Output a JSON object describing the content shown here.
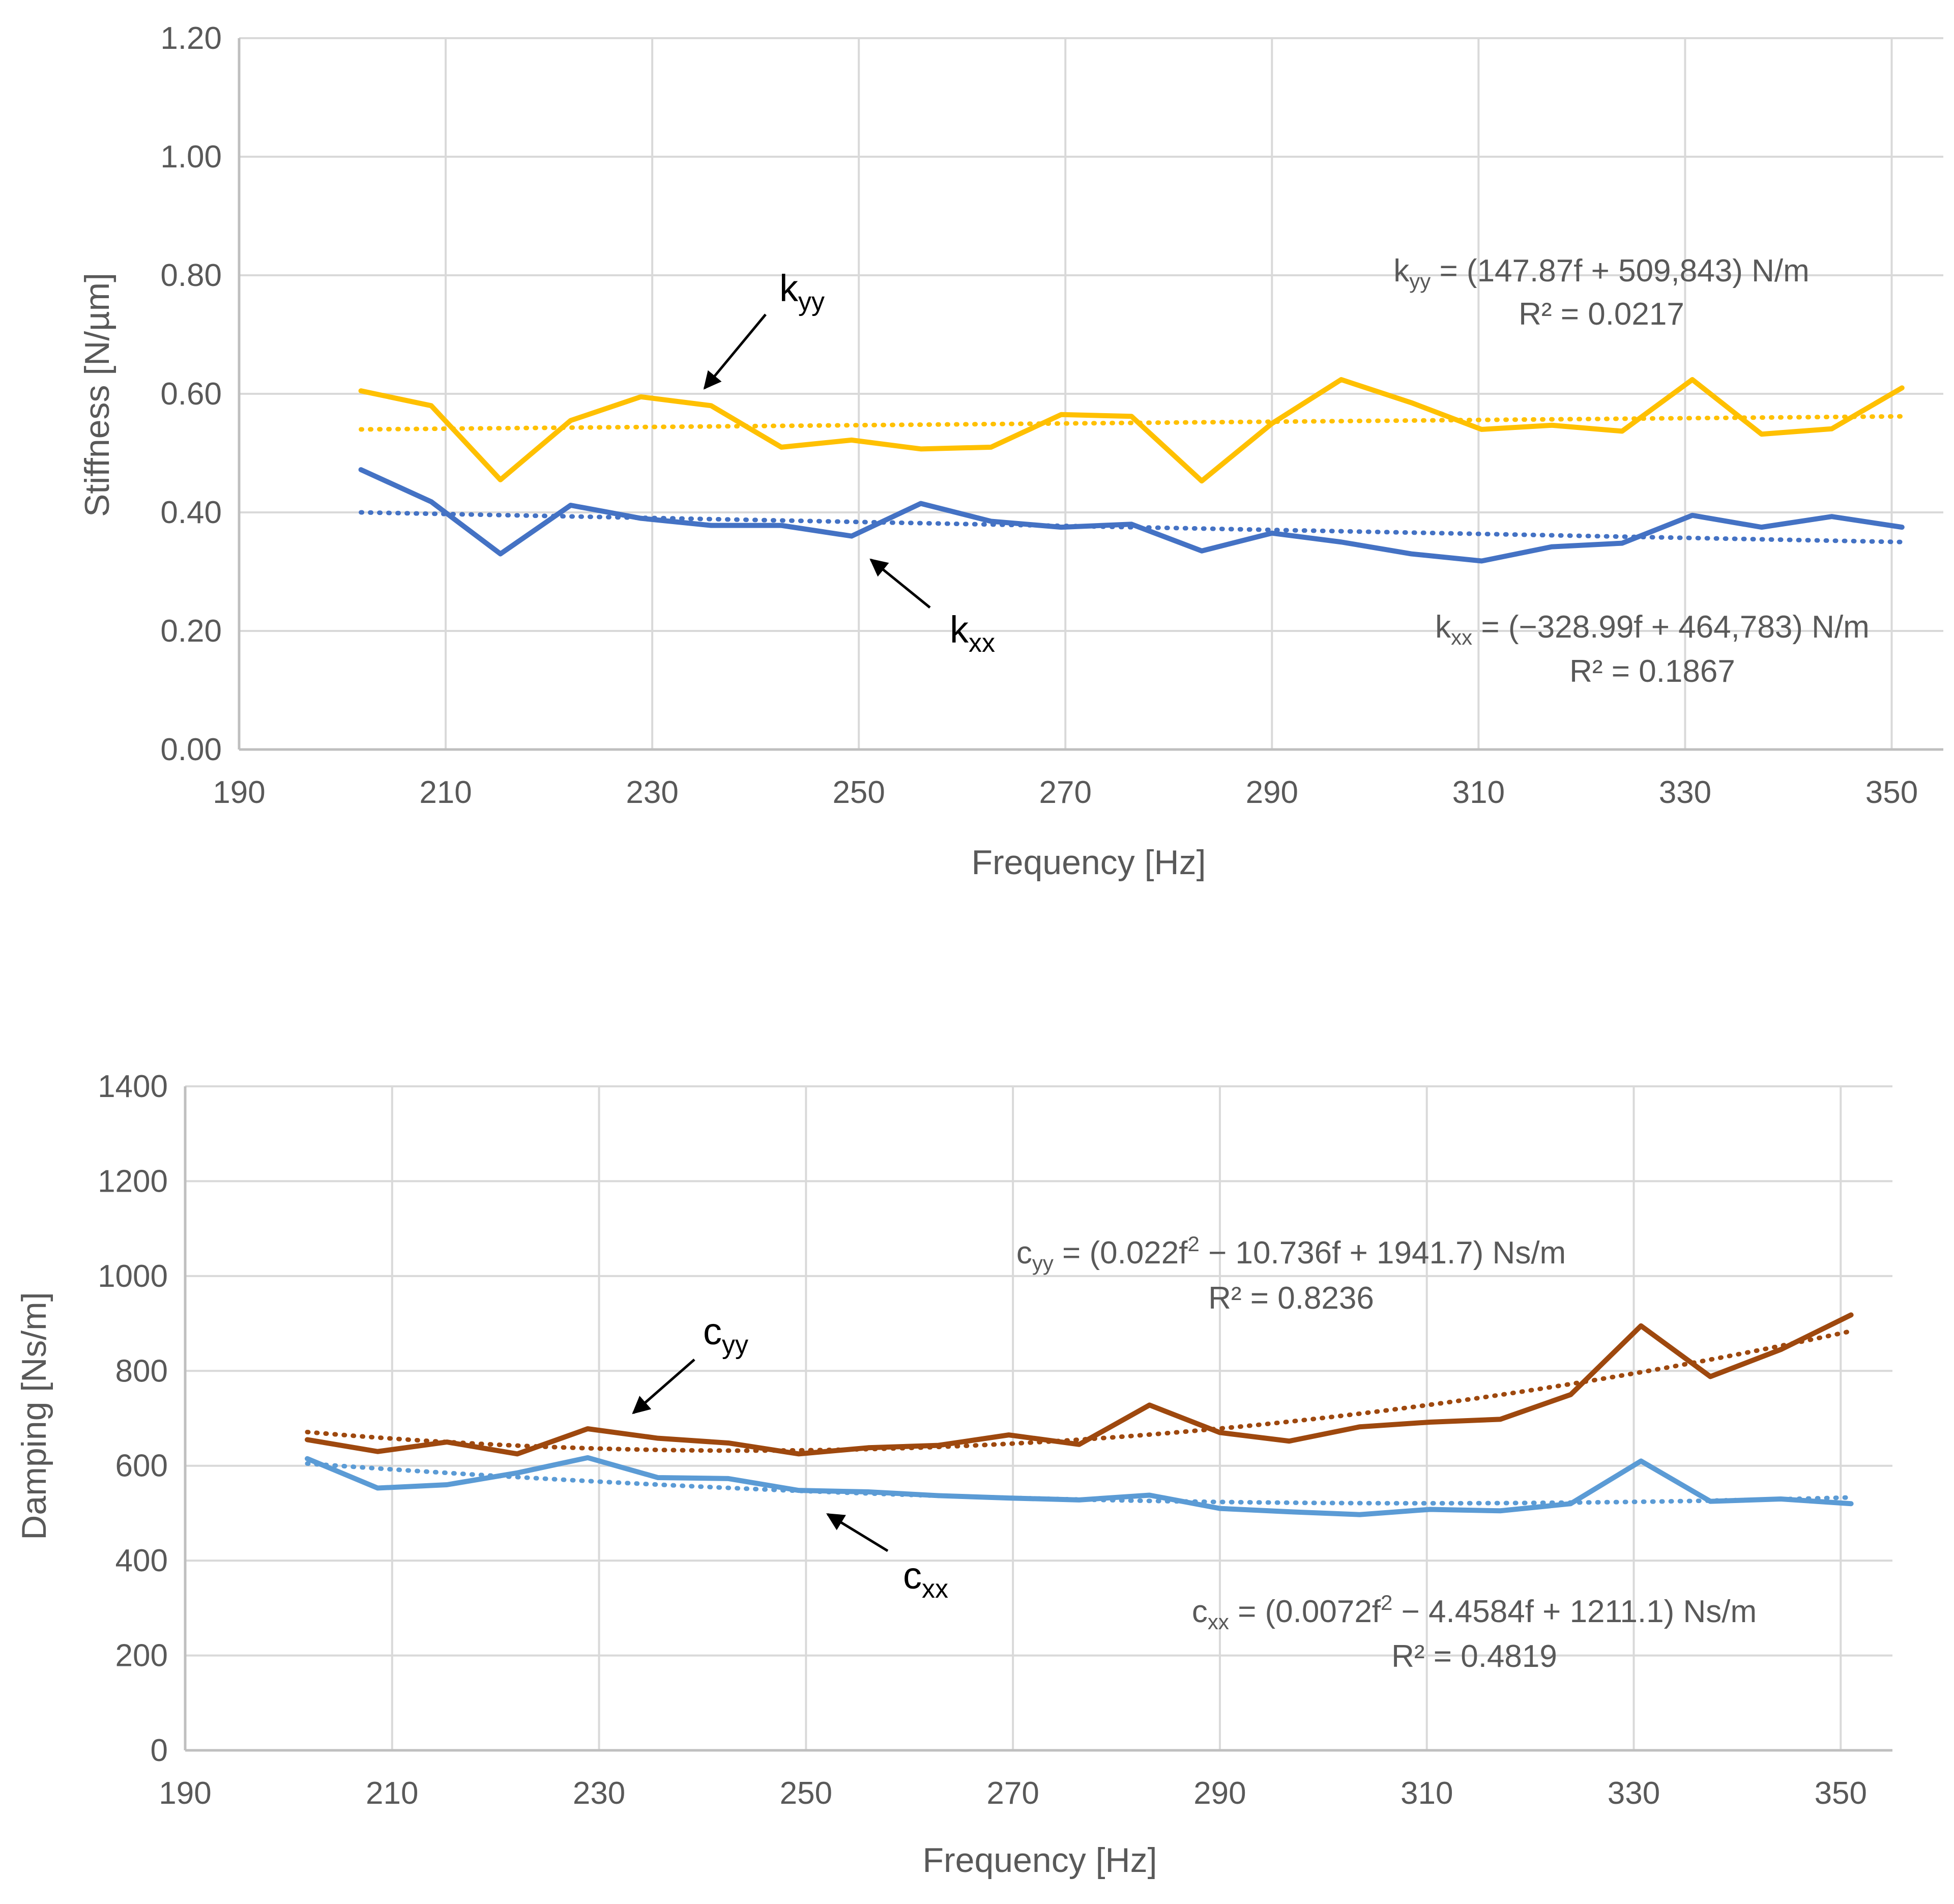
{
  "chart_data": [
    {
      "type": "line",
      "xlabel": "Frequency [Hz]",
      "ylabel": "Stiffness [N/µm]",
      "xlim": [
        190,
        355
      ],
      "ylim": [
        0,
        1.2
      ],
      "x_ticks": [
        "190",
        "210",
        "230",
        "250",
        "270",
        "290",
        "310",
        "330",
        "350"
      ],
      "y_ticks": [
        "0.00",
        "0.20",
        "0.40",
        "0.60",
        "0.80",
        "1.00",
        "1.20"
      ],
      "grid": true,
      "x": [
        201.8,
        208.6,
        215.3,
        222.1,
        228.9,
        235.7,
        242.5,
        249.3,
        256.0,
        262.8,
        269.6,
        276.4,
        283.2,
        290.0,
        296.7,
        303.5,
        310.3,
        317.1,
        323.9,
        330.7,
        337.4,
        344.2,
        351.0
      ],
      "series": [
        {
          "name": "k_yy",
          "color": "#FFC000",
          "values": [
            0.605,
            0.58,
            0.455,
            0.555,
            0.595,
            0.58,
            0.51,
            0.522,
            0.507,
            0.51,
            0.565,
            0.562,
            0.453,
            0.55,
            0.624,
            0.585,
            0.54,
            0.547,
            0.537,
            0.624,
            0.532,
            0.541,
            0.61
          ],
          "trendline": {
            "type": "linear",
            "start": 0.54,
            "end": 0.562
          }
        },
        {
          "name": "k_xx",
          "color": "#4472C4",
          "values": [
            0.472,
            0.418,
            0.33,
            0.412,
            0.39,
            0.378,
            0.378,
            0.36,
            0.415,
            0.385,
            0.375,
            0.38,
            0.335,
            0.365,
            0.35,
            0.33,
            0.318,
            0.342,
            0.348,
            0.395,
            0.375,
            0.393,
            0.375
          ],
          "trendline": {
            "type": "linear",
            "start": 0.4,
            "end": 0.35
          }
        }
      ],
      "annotations": [
        {
          "label": "k",
          "sub": "yy",
          "eq_before": "k",
          "eq_sub": "yy",
          "eq_after": " = (147.87f + 509,843) N/m",
          "r2": "R² = 0.0217"
        },
        {
          "label": "k",
          "sub": "xx",
          "eq_before": "k",
          "eq_sub": "xx",
          "eq_after": " = (−328.99f + 464,783) N/m",
          "r2": "R² = 0.1867"
        }
      ]
    },
    {
      "type": "line",
      "xlabel": "Frequency [Hz]",
      "ylabel": "Damping [Ns/m]",
      "xlim": [
        190,
        355
      ],
      "ylim": [
        0,
        1400
      ],
      "x_ticks": [
        "190",
        "210",
        "230",
        "250",
        "270",
        "290",
        "310",
        "330",
        "350"
      ],
      "y_ticks": [
        "0",
        "200",
        "400",
        "600",
        "800",
        "1000",
        "1200",
        "1400"
      ],
      "grid": true,
      "x": [
        201.8,
        208.6,
        215.3,
        222.1,
        228.9,
        235.7,
        242.5,
        249.3,
        256.0,
        262.8,
        269.6,
        276.4,
        283.2,
        290.0,
        296.7,
        303.5,
        310.3,
        317.1,
        323.9,
        330.7,
        337.4,
        344.2,
        351.0
      ],
      "series": [
        {
          "name": "c_yy",
          "color": "#9E480E",
          "values": [
            655,
            630,
            650,
            625,
            678,
            658,
            648,
            625,
            638,
            643,
            665,
            645,
            728,
            670,
            652,
            682,
            692,
            698,
            750,
            895,
            788,
            845,
            918
          ],
          "trendline": {
            "type": "poly2",
            "a": 0.022,
            "b": -10.736,
            "c": 1941.7
          }
        },
        {
          "name": "c_xx",
          "color": "#5B9BD5",
          "values": [
            615,
            553,
            560,
            585,
            617,
            575,
            573,
            548,
            545,
            537,
            532,
            528,
            538,
            510,
            503,
            497,
            508,
            505,
            520,
            610,
            525,
            530,
            520
          ],
          "trendline": {
            "type": "poly2",
            "a": 0.0072,
            "b": -4.4584,
            "c": 1211.1
          }
        }
      ],
      "annotations": [
        {
          "label": "c",
          "sub": "yy",
          "eq_before": "c",
          "eq_sub": "yy",
          "eq_after": " = (0.022f",
          "eq_sup": "2",
          "eq_tail": " − 10.736f + 1941.7) Ns/m",
          "r2": "R² = 0.8236"
        },
        {
          "label": "c",
          "sub": "xx",
          "eq_before": "c",
          "eq_sub": "xx",
          "eq_after": " = (0.0072f",
          "eq_sup": "2",
          "eq_tail": " − 4.4584f + 1211.1) Ns/m",
          "r2": "R² = 0.4819"
        }
      ]
    }
  ]
}
